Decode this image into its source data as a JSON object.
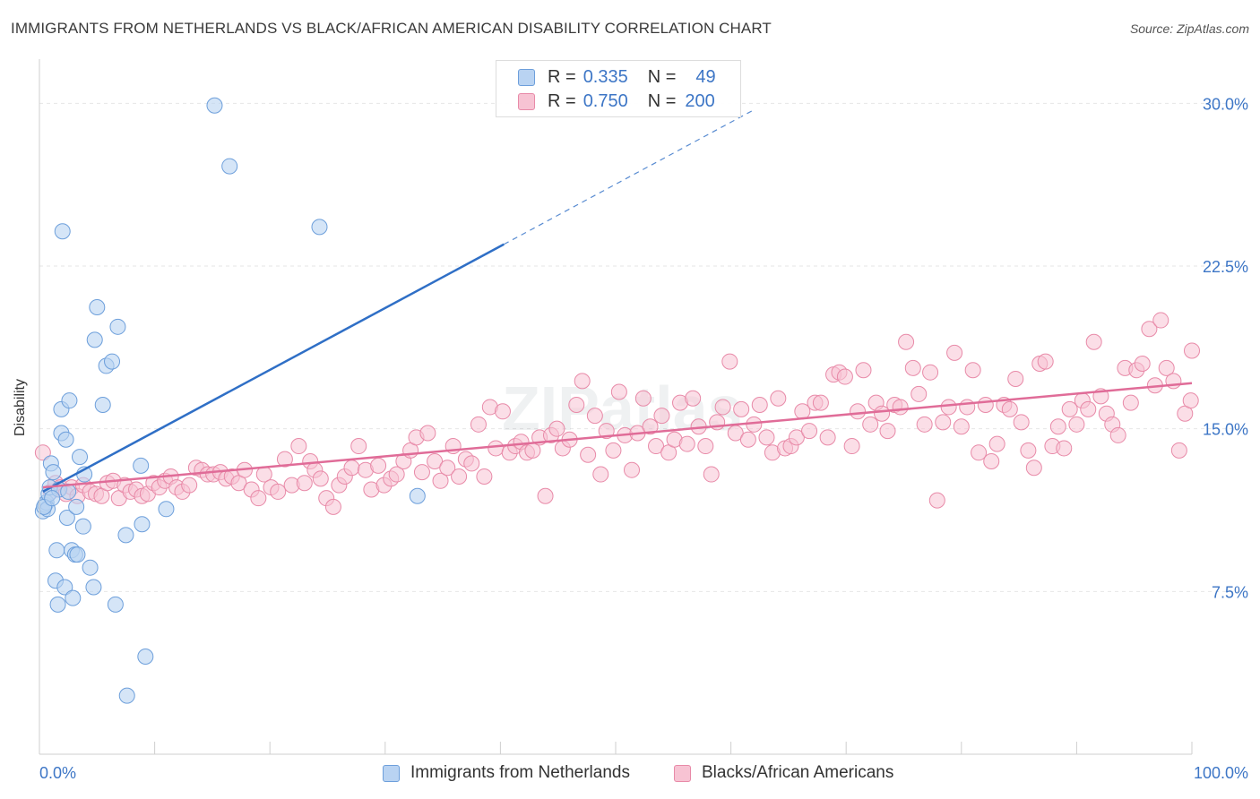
{
  "title": "IMMIGRANTS FROM NETHERLANDS VS BLACK/AFRICAN AMERICAN DISABILITY CORRELATION CHART",
  "source": "Source: ZipAtlas.com",
  "legend_top": [
    {
      "r_label": "R =",
      "r_value": "0.335",
      "n_label": "N =",
      "n_value": "49"
    },
    {
      "r_label": "R =",
      "r_value": "0.750",
      "n_label": "N =",
      "n_value": "200"
    }
  ],
  "colors": {
    "blue_fill": "#b9d3f2",
    "blue_stroke": "#6d9fdb",
    "blue_line": "#2f6fc6",
    "pink_fill": "#f7c3d3",
    "pink_stroke": "#e88aa8",
    "pink_line": "#e06c98",
    "tick_label": "#3d76c6",
    "grid": "#e6e6e6"
  },
  "chart_data": {
    "type": "scatter",
    "title": "IMMIGRANTS FROM NETHERLANDS VS BLACK/AFRICAN AMERICAN DISABILITY CORRELATION CHART",
    "xlabel": "",
    "ylabel": "Disability",
    "xlim": [
      0,
      100
    ],
    "ylim": [
      0,
      31.5
    ],
    "x_tick_labels": [
      "0.0%",
      "100.0%"
    ],
    "y_ticks": [
      7.5,
      15.0,
      22.5,
      30.0
    ],
    "y_tick_labels": [
      "7.5%",
      "15.0%",
      "22.5%",
      "30.0%"
    ],
    "grid": true,
    "legend_position": "bottom",
    "series": [
      {
        "name": "Immigrants from Netherlands",
        "r": 0.335,
        "n": 49,
        "trend": {
          "x": [
            0.3,
            40.3
          ],
          "y": [
            12.1,
            23.5
          ],
          "dashed_to": [
            62.0,
            29.7
          ]
        },
        "points": [
          [
            0.3,
            11.2
          ],
          [
            0.5,
            11.5
          ],
          [
            0.6,
            11.6
          ],
          [
            0.7,
            11.3
          ],
          [
            0.8,
            12.0
          ],
          [
            0.9,
            12.3
          ],
          [
            1.0,
            13.4
          ],
          [
            1.2,
            13.0
          ],
          [
            1.4,
            8.0
          ],
          [
            1.5,
            9.4
          ],
          [
            1.6,
            6.9
          ],
          [
            1.7,
            12.2
          ],
          [
            1.9,
            15.9
          ],
          [
            1.9,
            14.8
          ],
          [
            2.0,
            24.1
          ],
          [
            2.2,
            7.7
          ],
          [
            2.3,
            14.5
          ],
          [
            2.4,
            10.9
          ],
          [
            2.5,
            12.1
          ],
          [
            2.6,
            16.3
          ],
          [
            2.8,
            9.4
          ],
          [
            2.9,
            7.2
          ],
          [
            3.1,
            9.2
          ],
          [
            3.2,
            11.4
          ],
          [
            3.3,
            9.2
          ],
          [
            3.5,
            13.7
          ],
          [
            3.8,
            10.5
          ],
          [
            3.9,
            12.9
          ],
          [
            4.4,
            8.6
          ],
          [
            4.7,
            7.7
          ],
          [
            4.8,
            19.1
          ],
          [
            5.0,
            20.6
          ],
          [
            5.5,
            16.1
          ],
          [
            5.8,
            17.9
          ],
          [
            6.3,
            18.1
          ],
          [
            6.6,
            6.9
          ],
          [
            6.8,
            19.7
          ],
          [
            7.5,
            10.1
          ],
          [
            7.6,
            2.7
          ],
          [
            8.8,
            13.3
          ],
          [
            8.9,
            10.6
          ],
          [
            9.2,
            4.5
          ],
          [
            11.0,
            11.3
          ],
          [
            15.2,
            29.9
          ],
          [
            16.5,
            27.1
          ],
          [
            24.3,
            24.3
          ],
          [
            32.8,
            11.9
          ],
          [
            0.4,
            11.4
          ],
          [
            1.1,
            11.8
          ]
        ]
      },
      {
        "name": "Blacks/African Americans",
        "r": 0.75,
        "n": 200,
        "trend": {
          "x": [
            0.3,
            100.0
          ],
          "y": [
            12.3,
            17.1
          ]
        },
        "points": [
          [
            0.3,
            13.9
          ],
          [
            1.0,
            12.1
          ],
          [
            1.4,
            12.5
          ],
          [
            1.8,
            12.3
          ],
          [
            2.3,
            12.0
          ],
          [
            2.8,
            12.3
          ],
          [
            3.3,
            11.9
          ],
          [
            3.8,
            12.4
          ],
          [
            4.4,
            12.1
          ],
          [
            4.9,
            12.0
          ],
          [
            5.4,
            11.9
          ],
          [
            5.9,
            12.5
          ],
          [
            6.4,
            12.6
          ],
          [
            6.9,
            11.8
          ],
          [
            7.4,
            12.4
          ],
          [
            7.9,
            12.1
          ],
          [
            8.4,
            12.2
          ],
          [
            8.9,
            11.9
          ],
          [
            9.4,
            12.0
          ],
          [
            9.9,
            12.5
          ],
          [
            10.4,
            12.3
          ],
          [
            10.9,
            12.6
          ],
          [
            11.4,
            12.8
          ],
          [
            11.9,
            12.3
          ],
          [
            12.4,
            12.1
          ],
          [
            13.0,
            12.4
          ],
          [
            13.6,
            13.2
          ],
          [
            14.1,
            13.1
          ],
          [
            14.6,
            12.9
          ],
          [
            15.1,
            12.9
          ],
          [
            15.7,
            13.0
          ],
          [
            16.2,
            12.7
          ],
          [
            16.7,
            12.8
          ],
          [
            17.3,
            12.5
          ],
          [
            17.8,
            13.1
          ],
          [
            18.4,
            12.2
          ],
          [
            19.0,
            11.8
          ],
          [
            19.5,
            12.9
          ],
          [
            20.1,
            12.3
          ],
          [
            20.7,
            12.1
          ],
          [
            21.3,
            13.6
          ],
          [
            21.9,
            12.4
          ],
          [
            22.5,
            14.2
          ],
          [
            23.0,
            12.5
          ],
          [
            23.5,
            13.5
          ],
          [
            23.9,
            13.1
          ],
          [
            24.4,
            12.7
          ],
          [
            24.9,
            11.8
          ],
          [
            25.5,
            11.4
          ],
          [
            26.0,
            12.4
          ],
          [
            26.5,
            12.8
          ],
          [
            27.1,
            13.2
          ],
          [
            27.7,
            14.2
          ],
          [
            28.3,
            13.1
          ],
          [
            28.8,
            12.2
          ],
          [
            29.4,
            13.3
          ],
          [
            29.9,
            12.4
          ],
          [
            30.5,
            12.7
          ],
          [
            31.0,
            12.9
          ],
          [
            31.6,
            13.5
          ],
          [
            32.2,
            14.0
          ],
          [
            32.7,
            14.6
          ],
          [
            33.2,
            13.0
          ],
          [
            33.7,
            14.8
          ],
          [
            34.3,
            13.5
          ],
          [
            34.8,
            12.6
          ],
          [
            35.4,
            13.2
          ],
          [
            35.9,
            14.2
          ],
          [
            36.4,
            12.8
          ],
          [
            37.0,
            13.6
          ],
          [
            37.5,
            13.4
          ],
          [
            38.1,
            15.2
          ],
          [
            38.6,
            12.8
          ],
          [
            39.1,
            16.0
          ],
          [
            39.6,
            14.1
          ],
          [
            40.2,
            15.8
          ],
          [
            40.8,
            13.9
          ],
          [
            41.3,
            14.2
          ],
          [
            41.8,
            14.4
          ],
          [
            42.3,
            13.9
          ],
          [
            42.8,
            14.0
          ],
          [
            43.4,
            14.6
          ],
          [
            43.9,
            11.9
          ],
          [
            44.4,
            14.7
          ],
          [
            44.9,
            15.0
          ],
          [
            45.4,
            14.1
          ],
          [
            46.0,
            14.5
          ],
          [
            46.6,
            16.1
          ],
          [
            47.1,
            17.2
          ],
          [
            47.6,
            13.8
          ],
          [
            48.2,
            15.6
          ],
          [
            48.7,
            12.9
          ],
          [
            49.2,
            14.9
          ],
          [
            49.8,
            14.0
          ],
          [
            50.3,
            16.7
          ],
          [
            50.8,
            14.7
          ],
          [
            51.4,
            13.1
          ],
          [
            51.9,
            14.8
          ],
          [
            52.4,
            16.4
          ],
          [
            53.0,
            15.1
          ],
          [
            53.5,
            14.2
          ],
          [
            54.0,
            15.6
          ],
          [
            54.6,
            13.9
          ],
          [
            55.1,
            14.5
          ],
          [
            55.6,
            16.2
          ],
          [
            56.2,
            14.3
          ],
          [
            56.7,
            16.4
          ],
          [
            57.2,
            15.1
          ],
          [
            57.8,
            14.2
          ],
          [
            58.3,
            12.9
          ],
          [
            58.8,
            15.3
          ],
          [
            59.3,
            16.0
          ],
          [
            59.9,
            18.1
          ],
          [
            60.4,
            14.8
          ],
          [
            60.9,
            15.9
          ],
          [
            61.5,
            14.5
          ],
          [
            62.0,
            15.2
          ],
          [
            62.5,
            16.1
          ],
          [
            63.1,
            14.6
          ],
          [
            63.6,
            13.9
          ],
          [
            64.1,
            16.4
          ],
          [
            64.7,
            14.1
          ],
          [
            65.2,
            14.2
          ],
          [
            65.7,
            14.6
          ],
          [
            66.2,
            15.8
          ],
          [
            66.8,
            14.9
          ],
          [
            67.3,
            16.2
          ],
          [
            67.8,
            16.2
          ],
          [
            68.4,
            14.6
          ],
          [
            68.9,
            17.5
          ],
          [
            69.4,
            17.6
          ],
          [
            69.9,
            17.4
          ],
          [
            70.5,
            14.2
          ],
          [
            71.0,
            15.8
          ],
          [
            71.5,
            17.7
          ],
          [
            72.1,
            15.2
          ],
          [
            72.6,
            16.2
          ],
          [
            73.1,
            15.7
          ],
          [
            73.6,
            14.9
          ],
          [
            74.2,
            16.1
          ],
          [
            74.7,
            16.0
          ],
          [
            75.2,
            19.0
          ],
          [
            75.8,
            17.8
          ],
          [
            76.3,
            16.6
          ],
          [
            76.8,
            15.2
          ],
          [
            77.3,
            17.6
          ],
          [
            77.9,
            11.7
          ],
          [
            78.4,
            15.3
          ],
          [
            78.9,
            16.0
          ],
          [
            79.4,
            18.5
          ],
          [
            80.0,
            15.1
          ],
          [
            80.5,
            16.0
          ],
          [
            81.0,
            17.7
          ],
          [
            81.5,
            13.9
          ],
          [
            82.1,
            16.1
          ],
          [
            82.6,
            13.5
          ],
          [
            83.1,
            14.3
          ],
          [
            83.7,
            16.1
          ],
          [
            84.2,
            15.9
          ],
          [
            84.7,
            17.3
          ],
          [
            85.2,
            15.3
          ],
          [
            85.8,
            14.0
          ],
          [
            86.3,
            13.2
          ],
          [
            86.8,
            18.0
          ],
          [
            87.3,
            18.1
          ],
          [
            87.9,
            14.2
          ],
          [
            88.4,
            15.1
          ],
          [
            88.9,
            14.1
          ],
          [
            89.4,
            15.9
          ],
          [
            90.0,
            15.2
          ],
          [
            90.5,
            16.3
          ],
          [
            91.0,
            15.9
          ],
          [
            91.5,
            19.0
          ],
          [
            92.1,
            16.5
          ],
          [
            92.6,
            15.7
          ],
          [
            93.1,
            15.2
          ],
          [
            93.6,
            14.7
          ],
          [
            94.2,
            17.8
          ],
          [
            94.7,
            16.2
          ],
          [
            95.2,
            17.7
          ],
          [
            95.7,
            18.0
          ],
          [
            96.3,
            19.6
          ],
          [
            96.8,
            17.0
          ],
          [
            97.3,
            20.0
          ],
          [
            97.8,
            17.8
          ],
          [
            98.4,
            17.2
          ],
          [
            98.9,
            14.0
          ],
          [
            99.4,
            15.7
          ],
          [
            99.9,
            16.3
          ],
          [
            100.0,
            18.6
          ]
        ]
      }
    ]
  },
  "legend_bottom": [
    "Immigrants from Netherlands",
    "Blacks/African Americans"
  ]
}
